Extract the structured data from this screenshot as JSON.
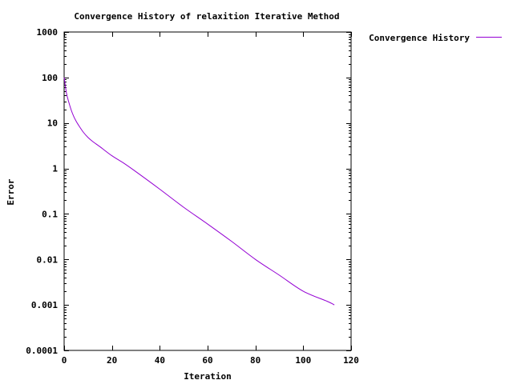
{
  "chart_data": {
    "type": "line",
    "title": "Convergence History of relaxition Iterative Method",
    "xlabel": "Iteration",
    "ylabel": "Error",
    "xlim": [
      0,
      120
    ],
    "ylim": [
      0.0001,
      1000
    ],
    "y_scale": "log",
    "grid": false,
    "legend_position": "top-right-outside",
    "x_ticks": [
      0,
      20,
      40,
      60,
      80,
      100,
      120
    ],
    "x_tick_labels": [
      "0",
      "20",
      "40",
      "60",
      "80",
      "100",
      "120"
    ],
    "y_ticks": [
      0.0001,
      0.001,
      0.01,
      0.1,
      1,
      10,
      100,
      1000
    ],
    "y_tick_labels": [
      "0.0001",
      "0.001",
      "0.01",
      "0.1",
      "1",
      "10",
      "100",
      "1000"
    ],
    "series": [
      {
        "name": "Convergence History",
        "color": "#9400d3",
        "x": [
          0,
          1,
          2,
          3,
          4,
          5,
          6,
          8,
          10,
          12,
          15,
          20,
          25,
          30,
          40,
          50,
          60,
          70,
          80,
          90,
          100,
          110,
          113
        ],
        "y": [
          100,
          45,
          28,
          19,
          14,
          11,
          9,
          6.3,
          4.8,
          3.9,
          3.0,
          1.9,
          1.3,
          0.85,
          0.35,
          0.14,
          0.06,
          0.025,
          0.01,
          0.0045,
          0.002,
          0.0012,
          0.001
        ]
      }
    ]
  }
}
